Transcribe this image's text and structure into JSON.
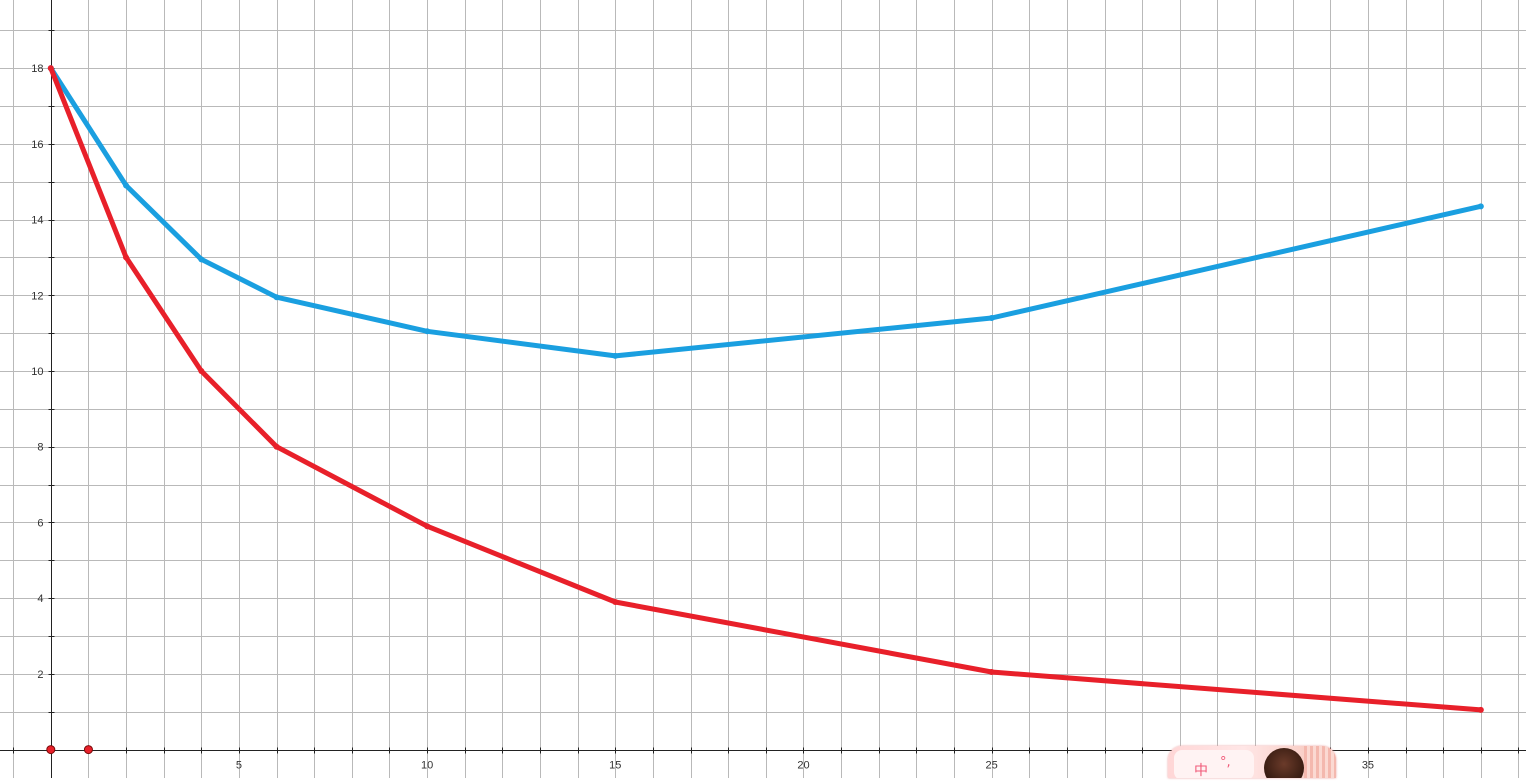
{
  "chart_data": {
    "type": "line",
    "title": "",
    "xlabel": "",
    "ylabel": "",
    "xlim": [
      -1.35,
      39.2
    ],
    "ylim": [
      -0.75,
      19.8
    ],
    "grid": true,
    "x_major_ticks": [
      5,
      10,
      15,
      20,
      25,
      35
    ],
    "y_major_ticks": [
      2,
      4,
      6,
      8,
      10,
      12,
      14,
      16,
      18
    ],
    "x_tick_labels": [
      "5",
      "10",
      "15",
      "20",
      "25",
      "35"
    ],
    "y_tick_labels": [
      "2",
      "4",
      "6",
      "8",
      "10",
      "12",
      "14",
      "16",
      "18"
    ],
    "series": [
      {
        "color": "#1a9fe0",
        "x": [
          0,
          2,
          4,
          6,
          10,
          15,
          25,
          38
        ],
        "y": [
          18,
          14.9,
          12.95,
          11.95,
          11.05,
          10.4,
          11.4,
          14.35
        ]
      },
      {
        "color": "#e8202a",
        "x": [
          0,
          2,
          4,
          6,
          10,
          15,
          25,
          38
        ],
        "y": [
          18,
          13,
          10,
          8,
          5.9,
          3.9,
          2.05,
          1.05
        ]
      }
    ],
    "markers": [
      {
        "x": 0,
        "y": 0,
        "color": "#e8202a"
      },
      {
        "x": 1,
        "y": 0,
        "color": "#e8202a"
      }
    ]
  },
  "ime": {
    "lang_label": "中",
    "punct_label": "°,"
  }
}
